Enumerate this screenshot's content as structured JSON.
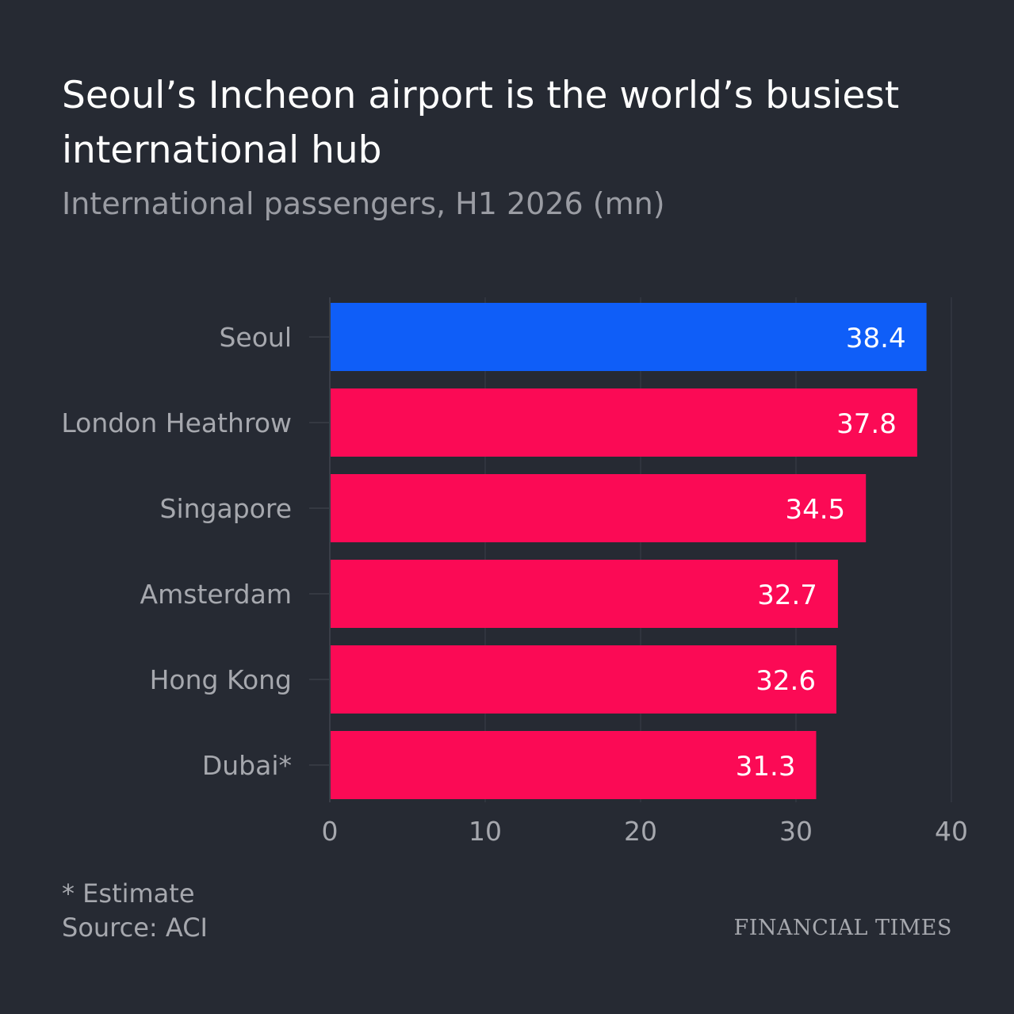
{
  "header": {
    "title": "Seoul’s Incheon airport is the world’s busiest international hub",
    "subtitle": "International passengers, H1 2026 (mn)"
  },
  "footer": {
    "note": "* Estimate",
    "source": "Source: ACI",
    "brand": "FINANCIAL TIMES"
  },
  "colors": {
    "background": "#262a33",
    "highlight_bar": "#0f5ef8",
    "bar": "#fb0a55",
    "label_text": "#a6a8ae",
    "value_text": "#ffffff",
    "gridline": "#3a3e48"
  },
  "chart_data": {
    "type": "bar",
    "orientation": "horizontal",
    "categories": [
      "Seoul",
      "London Heathrow",
      "Singapore",
      "Amsterdam",
      "Hong Kong",
      "Dubai*"
    ],
    "values": [
      38.4,
      37.8,
      34.5,
      32.7,
      32.6,
      31.3
    ],
    "highlight": "Seoul",
    "xlim": [
      0,
      40
    ],
    "xticks": [
      0,
      10,
      20,
      30,
      40
    ],
    "data_labels": [
      "38.4",
      "37.8",
      "34.5",
      "32.7",
      "32.6",
      "31.3"
    ],
    "grid": true
  }
}
